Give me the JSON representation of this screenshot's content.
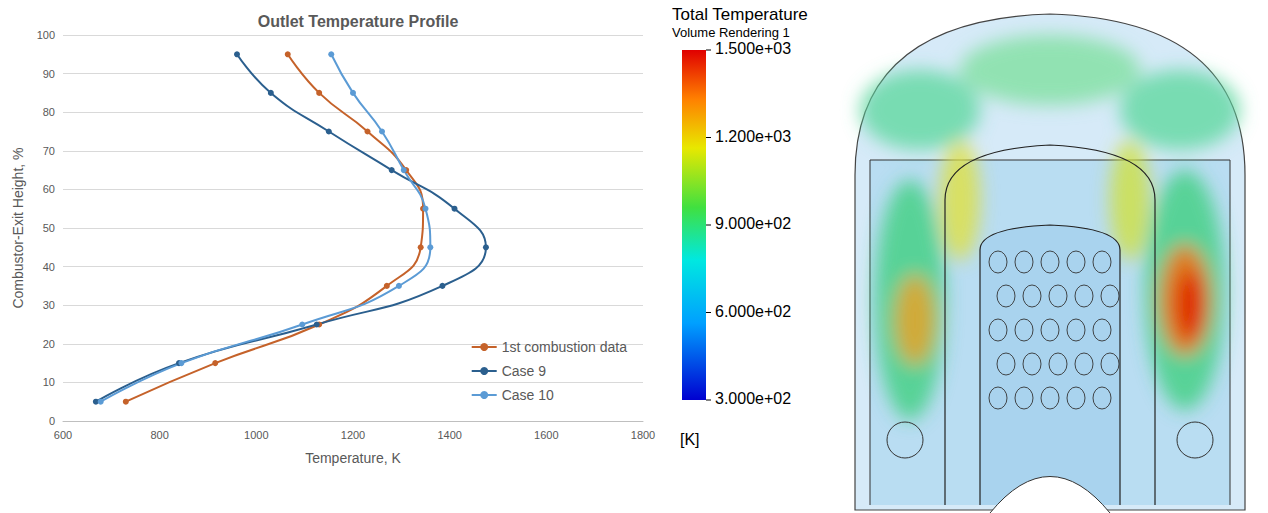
{
  "chart_data": {
    "type": "line",
    "title": "Outlet Temperature Profile",
    "x_label": "Temperature, K",
    "y_label": "Combustor-Exit Height, %",
    "xlim": [
      600,
      1800
    ],
    "xticks": [
      600,
      800,
      1000,
      1200,
      1400,
      1600,
      1800
    ],
    "ylim": [
      0,
      100
    ],
    "yticks": [
      0,
      10,
      20,
      30,
      40,
      50,
      60,
      70,
      80,
      90,
      100
    ],
    "grid": true,
    "legend": "lower right",
    "marker": "circle",
    "line_style": "smooth",
    "series": [
      {
        "name": "1st combustion data",
        "color": "#c5622a",
        "x": [
          730,
          915,
          1130,
          1270,
          1340,
          1345,
          1310,
          1230,
          1130,
          1065
        ],
        "values": [
          5,
          15,
          25,
          35,
          45,
          55,
          65,
          75,
          85,
          95
        ]
      },
      {
        "name": "Case 9",
        "color": "#2b5f8e",
        "x": [
          668,
          840,
          1125,
          1385,
          1475,
          1410,
          1280,
          1150,
          1030,
          960
        ],
        "values": [
          5,
          15,
          25,
          35,
          45,
          55,
          65,
          75,
          85,
          95
        ]
      },
      {
        "name": "Case 10",
        "color": "#5b9bd5",
        "x": [
          678,
          845,
          1095,
          1295,
          1360,
          1350,
          1305,
          1260,
          1200,
          1155
        ],
        "values": [
          5,
          15,
          25,
          35,
          45,
          55,
          65,
          75,
          85,
          95
        ]
      }
    ]
  },
  "color_bar": {
    "title": "Total Temperature",
    "subtitle": "Volume Rendering 1",
    "range": [
      300,
      1500
    ],
    "ticks": [
      {
        "value": 1500,
        "label": "1.500e+03"
      },
      {
        "value": 1200,
        "label": "1.200e+03"
      },
      {
        "value": 900,
        "label": "9.000e+02"
      },
      {
        "value": 600,
        "label": "6.000e+02"
      },
      {
        "value": 300,
        "label": "3.000e+02"
      }
    ],
    "unit": "[K]"
  }
}
